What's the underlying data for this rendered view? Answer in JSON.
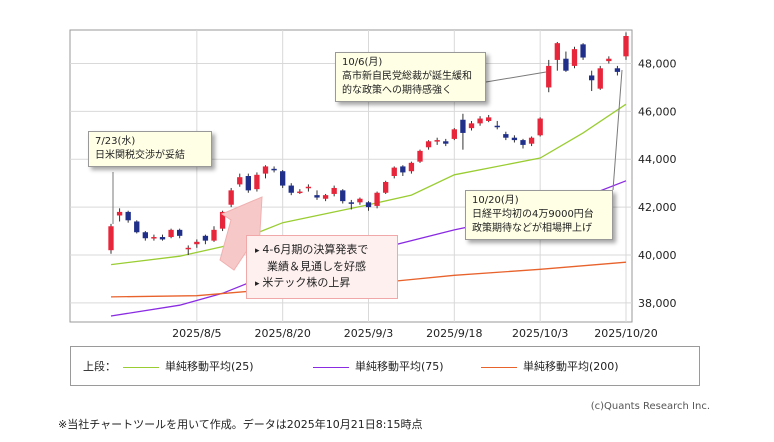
{
  "chart_data": {
    "type": "candlestick",
    "x_ticks": [
      "2025/8/5",
      "2025/8/20",
      "2025/9/3",
      "2025/9/18",
      "2025/10/3",
      "2025/10/20"
    ],
    "y_ticks": [
      "38,000",
      "40,000",
      "42,000",
      "44,000",
      "46,000",
      "48,000"
    ],
    "ylim": [
      37200,
      49400
    ],
    "grid": true,
    "candles": [
      {
        "date": "2025/7/22",
        "open": 40200,
        "close": 41200,
        "high": 41300,
        "low": 40050
      },
      {
        "date": "2025/7/23",
        "open": 41650,
        "close": 41800,
        "high": 41950,
        "low": 41400
      },
      {
        "date": "2025/7/24",
        "open": 41800,
        "close": 41450,
        "high": 41850,
        "low": 41350
      },
      {
        "date": "2025/7/25",
        "open": 41400,
        "close": 40950,
        "high": 41450,
        "low": 40900
      },
      {
        "date": "2025/7/28",
        "open": 40950,
        "close": 40700,
        "high": 41000,
        "low": 40600
      },
      {
        "date": "2025/7/29",
        "open": 40700,
        "close": 40750,
        "high": 40850,
        "low": 40600
      },
      {
        "date": "2025/7/30",
        "open": 40750,
        "close": 40650,
        "high": 40850,
        "low": 40600
      },
      {
        "date": "2025/7/31",
        "open": 40750,
        "close": 41050,
        "high": 41100,
        "low": 40700
      },
      {
        "date": "2025/8/1",
        "open": 41050,
        "close": 40800,
        "high": 41100,
        "low": 40700
      },
      {
        "date": "2025/8/4",
        "open": 40250,
        "close": 40300,
        "high": 40400,
        "low": 40000
      },
      {
        "date": "2025/8/5",
        "open": 40450,
        "close": 40550,
        "high": 40650,
        "low": 40300
      },
      {
        "date": "2025/8/6",
        "open": 40800,
        "close": 40600,
        "high": 40850,
        "low": 40450
      },
      {
        "date": "2025/8/7",
        "open": 40600,
        "close": 41050,
        "high": 41200,
        "low": 40550
      },
      {
        "date": "2025/8/8",
        "open": 41100,
        "close": 41800,
        "high": 41850,
        "low": 41000
      },
      {
        "date": "2025/8/12",
        "open": 42100,
        "close": 42700,
        "high": 42800,
        "low": 42000
      },
      {
        "date": "2025/8/13",
        "open": 42950,
        "close": 43250,
        "high": 43400,
        "low": 42850
      },
      {
        "date": "2025/8/14",
        "open": 43300,
        "close": 42700,
        "high": 43400,
        "low": 42600
      },
      {
        "date": "2025/8/15",
        "open": 42750,
        "close": 43350,
        "high": 43450,
        "low": 42650
      },
      {
        "date": "2025/8/18",
        "open": 43400,
        "close": 43700,
        "high": 43750,
        "low": 43200
      },
      {
        "date": "2025/8/19",
        "open": 43600,
        "close": 43550,
        "high": 43700,
        "low": 43450
      },
      {
        "date": "2025/8/20",
        "open": 43500,
        "close": 42900,
        "high": 43550,
        "low": 42800
      },
      {
        "date": "2025/8/21",
        "open": 42900,
        "close": 42600,
        "high": 43000,
        "low": 42500
      },
      {
        "date": "2025/8/22",
        "open": 42600,
        "close": 42650,
        "high": 42750,
        "low": 42550
      },
      {
        "date": "2025/8/25",
        "open": 42800,
        "close": 42850,
        "high": 42950,
        "low": 42650
      },
      {
        "date": "2025/8/26",
        "open": 42500,
        "close": 42400,
        "high": 42700,
        "low": 42300
      },
      {
        "date": "2025/8/27",
        "open": 42350,
        "close": 42500,
        "high": 42550,
        "low": 42250
      },
      {
        "date": "2025/8/28",
        "open": 42550,
        "close": 42800,
        "high": 42900,
        "low": 42450
      },
      {
        "date": "2025/8/29",
        "open": 42700,
        "close": 42250,
        "high": 42750,
        "low": 42150
      },
      {
        "date": "2025/9/1",
        "open": 42200,
        "close": 42150,
        "high": 42300,
        "low": 41900
      },
      {
        "date": "2025/9/2",
        "open": 42200,
        "close": 42350,
        "high": 42400,
        "low": 42100
      },
      {
        "date": "2025/9/3",
        "open": 42200,
        "close": 42000,
        "high": 42250,
        "low": 41850
      },
      {
        "date": "2025/9/4",
        "open": 42050,
        "close": 42600,
        "high": 42650,
        "low": 41950
      },
      {
        "date": "2025/9/5",
        "open": 42600,
        "close": 43050,
        "high": 43100,
        "low": 42550
      },
      {
        "date": "2025/9/8",
        "open": 43300,
        "close": 43650,
        "high": 43700,
        "low": 43200
      },
      {
        "date": "2025/9/9",
        "open": 43700,
        "close": 43450,
        "high": 43750,
        "low": 43300
      },
      {
        "date": "2025/9/10",
        "open": 43500,
        "close": 43850,
        "high": 43900,
        "low": 43400
      },
      {
        "date": "2025/9/11",
        "open": 43900,
        "close": 44350,
        "high": 44400,
        "low": 43850
      },
      {
        "date": "2025/9/12",
        "open": 44500,
        "close": 44750,
        "high": 44800,
        "low": 44400
      },
      {
        "date": "2025/9/16",
        "open": 44750,
        "close": 44800,
        "high": 44900,
        "low": 44600
      },
      {
        "date": "2025/9/17",
        "open": 44750,
        "close": 44650,
        "high": 44850,
        "low": 44550
      },
      {
        "date": "2025/9/18",
        "open": 44850,
        "close": 45250,
        "high": 45300,
        "low": 44800
      },
      {
        "date": "2025/9/19",
        "open": 45650,
        "close": 45100,
        "high": 45900,
        "low": 44400
      },
      {
        "date": "2025/9/22",
        "open": 45300,
        "close": 45500,
        "high": 45600,
        "low": 45200
      },
      {
        "date": "2025/9/24",
        "open": 45500,
        "close": 45700,
        "high": 45800,
        "low": 45400
      },
      {
        "date": "2025/9/25",
        "open": 45600,
        "close": 45750,
        "high": 45850,
        "low": 45550
      },
      {
        "date": "2025/9/26",
        "open": 45400,
        "close": 45350,
        "high": 45600,
        "low": 45250
      },
      {
        "date": "2025/9/29",
        "open": 45050,
        "close": 44900,
        "high": 45150,
        "low": 44800
      },
      {
        "date": "2025/9/30",
        "open": 44900,
        "close": 44800,
        "high": 45000,
        "low": 44700
      },
      {
        "date": "2025/10/1",
        "open": 44800,
        "close": 44600,
        "high": 44850,
        "low": 44450
      },
      {
        "date": "2025/10/2",
        "open": 44650,
        "close": 44900,
        "high": 44950,
        "low": 44550
      },
      {
        "date": "2025/10/3",
        "open": 45000,
        "close": 45700,
        "high": 45750,
        "low": 44950
      },
      {
        "date": "2025/10/6",
        "open": 47000,
        "close": 47900,
        "high": 48150,
        "low": 46800
      },
      {
        "date": "2025/10/7",
        "open": 48150,
        "close": 48850,
        "high": 48900,
        "low": 47700
      },
      {
        "date": "2025/10/8",
        "open": 48200,
        "close": 47700,
        "high": 48500,
        "low": 47650
      },
      {
        "date": "2025/10/9",
        "open": 47900,
        "close": 48600,
        "high": 48700,
        "low": 47800
      },
      {
        "date": "2025/10/10",
        "open": 48800,
        "close": 48250,
        "high": 48850,
        "low": 48150
      },
      {
        "date": "2025/10/14",
        "open": 47500,
        "close": 47300,
        "high": 47700,
        "low": 46850
      },
      {
        "date": "2025/10/15",
        "open": 46950,
        "close": 47800,
        "high": 47900,
        "low": 46900
      },
      {
        "date": "2025/10/16",
        "open": 48100,
        "close": 48200,
        "high": 48300,
        "low": 48000
      },
      {
        "date": "2025/10/17",
        "open": 47800,
        "close": 47650,
        "high": 47900,
        "low": 47500
      },
      {
        "date": "2025/10/20",
        "open": 48300,
        "close": 49150,
        "high": 49300,
        "low": 48150
      }
    ],
    "series": [
      {
        "name": "単純移動平均(25)",
        "color": "#9acd32",
        "points": [
          [
            "2025/7/22",
            39600
          ],
          [
            "2025/8/1",
            39950
          ],
          [
            "2025/8/8",
            40350
          ],
          [
            "2025/8/20",
            41350
          ],
          [
            "2025/9/3",
            42100
          ],
          [
            "2025/9/10",
            42500
          ],
          [
            "2025/9/18",
            43350
          ],
          [
            "2025/10/3",
            44050
          ],
          [
            "2025/10/10",
            45100
          ],
          [
            "2025/10/20",
            46300
          ]
        ]
      },
      {
        "name": "単純移動平均(75)",
        "color": "#8a2be2",
        "points": [
          [
            "2025/7/22",
            37450
          ],
          [
            "2025/8/1",
            37900
          ],
          [
            "2025/8/8",
            38400
          ],
          [
            "2025/8/20",
            39400
          ],
          [
            "2025/9/3",
            40150
          ],
          [
            "2025/9/18",
            41050
          ],
          [
            "2025/10/3",
            41800
          ],
          [
            "2025/10/10",
            42400
          ],
          [
            "2025/10/20",
            43100
          ]
        ]
      },
      {
        "name": "単純移動平均(200)",
        "color": "#e8622c",
        "points": [
          [
            "2025/7/22",
            38250
          ],
          [
            "2025/8/5",
            38300
          ],
          [
            "2025/8/20",
            38600
          ],
          [
            "2025/9/3",
            38800
          ],
          [
            "2025/9/18",
            39150
          ],
          [
            "2025/10/3",
            39400
          ],
          [
            "2025/10/20",
            39700
          ]
        ]
      }
    ],
    "up_color": "#e8263b",
    "down_color": "#1f2f8a"
  },
  "annotations": {
    "note_0723": {
      "line1": "7/23(水)",
      "line2": "日米関税交渉が妥結"
    },
    "note_1006": {
      "line1": "10/6(月)",
      "line2": "高市新自民党総裁が誕生緩和",
      "line3": "的な政策への期待感強く"
    },
    "note_1020": {
      "line1": "10/20(月)",
      "line2": "日経平均初の4万9000円台",
      "line3": "政策期待などが相場押上げ"
    },
    "pinkbox": {
      "row1": "4-6月期の決算発表で",
      "row2": "業績＆見通しを好感",
      "row3": "米テック株の上昇"
    }
  },
  "legend": {
    "label": "上段：",
    "items": [
      "単純移動平均(25)",
      "単純移動平均(75)",
      "単純移動平均(200)"
    ]
  },
  "copyright": "(c)Quants Research Inc.",
  "footnote": "※当社チャートツールを用いて作成。データは2025年10月21日8:15時点"
}
